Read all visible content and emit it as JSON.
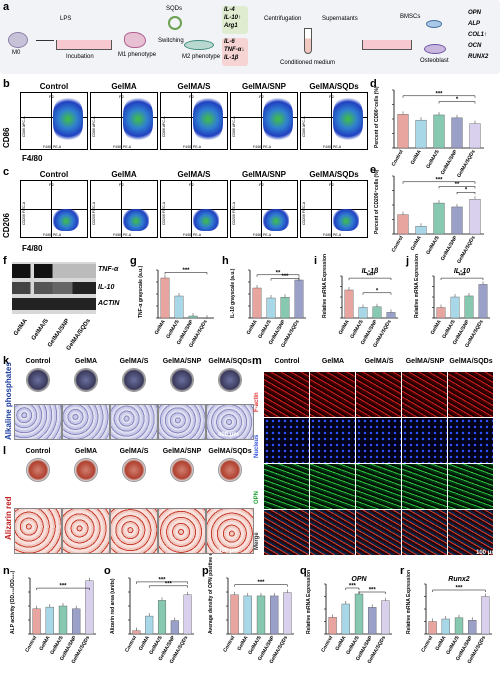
{
  "panel_a": {
    "label": "a",
    "cells": {
      "m0": "M0",
      "lps": "LPS",
      "incubation": "Incubation",
      "m1": "M1 phenotype",
      "sqds": "SQDs",
      "switching": "Switching",
      "m2": "M2 phenotype",
      "centrifugation": "Centrifugation",
      "supernatants": "Supernatants",
      "conditioned": "Conditioned medium",
      "bmscs": "BMSCs",
      "osteoblast": "Osteoblast"
    },
    "m2_markers": [
      "IL-4",
      "IL-10↑",
      "Arg1"
    ],
    "m1_markers": [
      "IL-6",
      "TNF-α↓",
      "IL-1β"
    ],
    "osteo_markers": [
      "OPN",
      "ALP",
      "COL1↑",
      "OCN",
      "RUNX2"
    ]
  },
  "groups": [
    "Control",
    "GelMA",
    "GelMA/S",
    "GelMA/SNP",
    "GelMA/SQDs"
  ],
  "panel_b": {
    "label": "b",
    "ylabel": "CD86",
    "xlabel": "F4/80",
    "p2": "P2",
    "axis_y": "CD86 APC-A",
    "axis_x": "F4/80 PE-A"
  },
  "panel_c": {
    "label": "c",
    "ylabel": "CD206",
    "xlabel": "F4/80",
    "p2": "P2",
    "axis_y": "CD206 FITC-A",
    "axis_x": "F4/80 PE-A"
  },
  "panel_f": {
    "label": "f",
    "bands": [
      "TNF-α",
      "IL-10",
      "ACTIN"
    ]
  },
  "panel_k": {
    "label": "k",
    "row": "Alkaline phosphates",
    "scale": "400 μm"
  },
  "panel_l": {
    "label": "l",
    "row": "Alizarin red",
    "scale": "400 μm"
  },
  "panel_m": {
    "label": "m",
    "rows": [
      "F-actin",
      "Nucleus",
      "OPN",
      "Merge"
    ],
    "scale": "100 μm"
  },
  "sig": {
    "s1": "*",
    "s2": "**",
    "s3": "***"
  },
  "chart_data": [
    {
      "panel": "d",
      "type": "bar",
      "ylabel": "Percent of CD86⁺cells (%)",
      "categories": [
        "Control",
        "GelMA",
        "GelMA/S",
        "GelMA/SNP",
        "GelMA/SQDs"
      ],
      "values": [
        58,
        48,
        57,
        52,
        42
      ],
      "ylim": [
        0,
        100
      ],
      "colors": [
        "#e8a5a0",
        "#a8d8e8",
        "#86c9b0",
        "#9aa0c8",
        "#d8d0ec"
      ]
    },
    {
      "panel": "e",
      "type": "bar",
      "ylabel": "Percent of CD206⁺cells (%)",
      "categories": [
        "Control",
        "GelMA",
        "GelMA/S",
        "GelMA/SNP",
        "GelMA/SQDs"
      ],
      "values": [
        5,
        2,
        8,
        7,
        9
      ],
      "ylim": [
        0,
        15
      ],
      "colors": [
        "#e8a5a0",
        "#a8d8e8",
        "#86c9b0",
        "#9aa0c8",
        "#d8d0ec"
      ]
    },
    {
      "panel": "g",
      "type": "bar",
      "ylabel": "TNF-α grayscale (a.u.)",
      "categories": [
        "GelMA",
        "GelMA/S",
        "GelMA/SNP",
        "GelMA/SQDs"
      ],
      "values": [
        1.0,
        0.55,
        0.05,
        0.0
      ],
      "ylim": [
        0,
        1.2
      ],
      "colors": [
        "#e8a5a0",
        "#a8d8e8",
        "#86c9b0",
        "#9aa0c8"
      ]
    },
    {
      "panel": "h",
      "type": "bar",
      "ylabel": "IL-10 grayscale (a.u.)",
      "categories": [
        "GelMA",
        "GelMA/S",
        "GelMA/SNP",
        "GelMA/SQDs"
      ],
      "values": [
        0.75,
        0.5,
        0.52,
        0.95
      ],
      "ylim": [
        0,
        1.2
      ],
      "colors": [
        "#e8a5a0",
        "#a8d8e8",
        "#86c9b0",
        "#9aa0c8"
      ]
    },
    {
      "panel": "i",
      "type": "bar",
      "title": "IL-1β",
      "ylabel": "Relative mRNA Expression",
      "categories": [
        "GelMA",
        "GelMA/S",
        "GelMA/SNP",
        "GelMA/SQDs"
      ],
      "values": [
        1.0,
        0.38,
        0.4,
        0.2
      ],
      "ylim": [
        0,
        1.5
      ],
      "colors": [
        "#e8a5a0",
        "#a8d8e8",
        "#86c9b0",
        "#9aa0c8"
      ]
    },
    {
      "panel": "j",
      "type": "bar",
      "title": "IL-10",
      "ylabel": "Relative mRNA Expression",
      "categories": [
        "GelMA",
        "GelMA/S",
        "GelMA/SNP",
        "GelMA/SQDs"
      ],
      "values": [
        1.0,
        2.0,
        2.1,
        3.2
      ],
      "ylim": [
        0,
        4
      ],
      "colors": [
        "#e8a5a0",
        "#a8d8e8",
        "#86c9b0",
        "#9aa0c8"
      ]
    },
    {
      "panel": "n",
      "type": "bar",
      "ylabel": "ALP activity (OD₄₀₅/OD₅₆₂)",
      "categories": [
        "Control",
        "GelMA",
        "GelMA/S",
        "GelMA/SNP",
        "GelMA/SQDs"
      ],
      "values": [
        0.45,
        0.48,
        0.5,
        0.45,
        0.95
      ],
      "ylim": [
        0,
        1.0
      ],
      "colors": [
        "#e8a5a0",
        "#a8d8e8",
        "#86c9b0",
        "#9aa0c8",
        "#d8d0ec"
      ]
    },
    {
      "panel": "o",
      "type": "bar",
      "ylabel": "Alizarin red area (units)",
      "categories": [
        "Control",
        "GelMA",
        "GelMA/S",
        "GelMA/SNP",
        "GelMA/SQDs"
      ],
      "values": [
        0.3,
        1.6,
        3.0,
        1.2,
        3.5
      ],
      "ylim": [
        0,
        5
      ],
      "colors": [
        "#e8a5a0",
        "#a8d8e8",
        "#86c9b0",
        "#9aa0c8",
        "#d8d0ec"
      ]
    },
    {
      "panel": "p",
      "type": "bar",
      "ylabel": "Average density of OPN positive expression (a.u.)",
      "categories": [
        "Control",
        "GelMA",
        "GelMA/S",
        "GelMA/SNP",
        "GelMA/SQDs"
      ],
      "values": [
        0.35,
        0.34,
        0.34,
        0.34,
        0.37
      ],
      "ylim": [
        0,
        0.5
      ],
      "colors": [
        "#e8a5a0",
        "#a8d8e8",
        "#86c9b0",
        "#9aa0c8",
        "#d8d0ec"
      ]
    },
    {
      "panel": "q",
      "type": "bar",
      "title": "OPN",
      "ylabel": "Relative mRNA Expression",
      "categories": [
        "Control",
        "GelMA",
        "GelMA/S",
        "GelMA/SNP",
        "GelMA/SQDs"
      ],
      "values": [
        1.0,
        1.8,
        2.4,
        1.6,
        2.0
      ],
      "ylim": [
        0,
        3
      ],
      "colors": [
        "#e8a5a0",
        "#a8d8e8",
        "#86c9b0",
        "#9aa0c8",
        "#d8d0ec"
      ]
    },
    {
      "panel": "r",
      "type": "bar",
      "title": "Runx2",
      "ylabel": "Relative mRNA Expression",
      "categories": [
        "Control",
        "GelMA",
        "GelMA/S",
        "GelMA/SNP",
        "GelMA/SQDs"
      ],
      "values": [
        1.0,
        1.2,
        1.3,
        1.1,
        3.0
      ],
      "ylim": [
        0,
        4
      ],
      "colors": [
        "#e8a5a0",
        "#a8d8e8",
        "#86c9b0",
        "#9aa0c8",
        "#d8d0ec"
      ]
    }
  ]
}
